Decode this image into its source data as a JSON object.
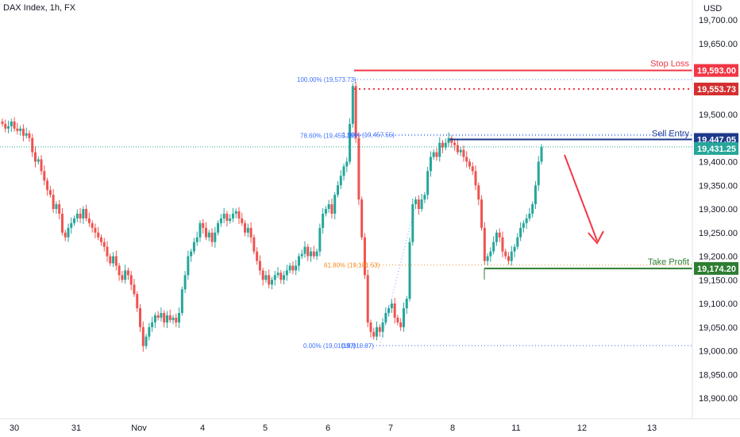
{
  "header": {
    "symbol_title": "DAX Index, 1h, FX",
    "currency": "USD"
  },
  "colors": {
    "up": "#26a69a",
    "down": "#ef5350",
    "stop": "#f23645",
    "entry": "#1e3a8a",
    "take_profit": "#2e7d32",
    "fib": "#2962ff",
    "fib_618": "#f57c00",
    "last_price_bg": "#26a69a",
    "arrow": "#f23645"
  },
  "chart_data": {
    "type": "candlestick",
    "symbol": "DAX Index",
    "interval": "1h",
    "source": "FX",
    "currency": "USD",
    "ylim": [
      18850,
      19735
    ],
    "y_ticks": [
      18900,
      18950,
      19000,
      19050,
      19100,
      19150,
      19200,
      19250,
      19300,
      19350,
      19400,
      19500,
      19650,
      19700
    ],
    "y_tick_labels": [
      "18,900.00",
      "18,950.00",
      "19,000.00",
      "19,050.00",
      "19,100.00",
      "19,150.00",
      "19,200.00",
      "19,250.00",
      "19,300.00",
      "19,350.00",
      "19,400.00",
      "19,500.00",
      "19,650.00",
      "19,700.00"
    ],
    "x_ticks": [
      "30",
      "31",
      "Nov",
      "4",
      "5",
      "6",
      "7",
      "8",
      "11",
      "12",
      "13"
    ],
    "close_prices": [
      19480,
      19470,
      19475,
      19485,
      19470,
      19465,
      19470,
      19455,
      19460,
      19450,
      19420,
      19400,
      19405,
      19380,
      19360,
      19340,
      19330,
      19300,
      19310,
      19290,
      19250,
      19240,
      19260,
      19270,
      19280,
      19290,
      19280,
      19300,
      19280,
      19270,
      19260,
      19250,
      19240,
      19230,
      19220,
      19200,
      19185,
      19200,
      19180,
      19160,
      19150,
      19170,
      19160,
      19140,
      19120,
      19090,
      19050,
      19010,
      19030,
      19050,
      19060,
      19075,
      19070,
      19080,
      19060,
      19075,
      19065,
      19070,
      19060,
      19080,
      19130,
      19160,
      19200,
      19210,
      19230,
      19240,
      19270,
      19260,
      19240,
      19250,
      19230,
      19250,
      19270,
      19280,
      19290,
      19275,
      19280,
      19290,
      19295,
      19280,
      19270,
      19250,
      19260,
      19240,
      19210,
      19190,
      19170,
      19150,
      19160,
      19140,
      19150,
      19160,
      19165,
      19150,
      19160,
      19170,
      19180,
      19170,
      19180,
      19200,
      19205,
      19220,
      19200,
      19210,
      19200,
      19210,
      19260,
      19290,
      19300,
      19310,
      19290,
      19330,
      19350,
      19370,
      19390,
      19400,
      19480,
      19560,
      19450,
      19320,
      19240,
      19160,
      19060,
      19040,
      19030,
      19050,
      19040,
      19060,
      19080,
      19090,
      19100,
      19070,
      19060,
      19050,
      19090,
      19110,
      19230,
      19310,
      19320,
      19300,
      19320,
      19330,
      19380,
      19410,
      19420,
      19410,
      19440,
      19430,
      19440,
      19450,
      19440,
      19435,
      19420,
      19425,
      19410,
      19400,
      19390,
      19380,
      19350,
      19320,
      19260,
      19190,
      19200,
      19210,
      19230,
      19250,
      19240,
      19210,
      19200,
      19190,
      19210,
      19220,
      19240,
      19260,
      19270,
      19280,
      19290,
      19310,
      19350,
      19400,
      19431.25
    ],
    "levels": [
      {
        "name": "Stop Loss",
        "value": 19593.0,
        "label": "19,593.00"
      },
      {
        "name": "",
        "value": 19553.73,
        "label": "19,553.73"
      },
      {
        "name": "Sell Entry",
        "value": 19447.05,
        "label": "19,447.05"
      },
      {
        "name": "",
        "value": 19431.25,
        "label": "19,431.25"
      },
      {
        "name": "Take Profit",
        "value": 19174.2,
        "label": "19,174.20"
      }
    ],
    "fib_levels": [
      {
        "label": "100.00% (19,573.73)",
        "value": 19573.73
      },
      {
        "label": "78.60% (19,455.28)",
        "value": 19455.28
      },
      {
        "label": "1.00% (19,457.55)",
        "value": 19457.55
      },
      {
        "label": "61.80% (19,181.53)",
        "value": 19181.53
      },
      {
        "label": "0.00% (19,010.87)",
        "value": 19010.87
      },
      {
        "label": "(19,010.87)",
        "value": 19010.87
      }
    ],
    "annotations": [
      "Stop Loss",
      "Sell Entry",
      "Take Profit"
    ],
    "grid": false
  }
}
